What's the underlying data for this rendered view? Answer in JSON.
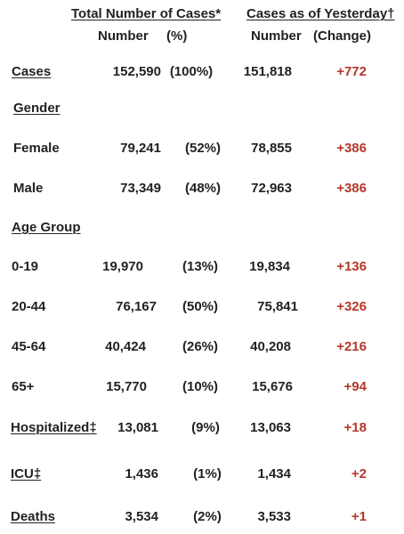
{
  "header": {
    "total_title": "Total Number of Cases*",
    "yesterday_title": "Cases as of Yesterday†",
    "number_label": "Number",
    "pct_label": "(%)",
    "number_label_2": "Number",
    "change_label": "(Change)"
  },
  "sections": {
    "gender": "Gender",
    "age_group": "Age Group"
  },
  "rows": {
    "cases": {
      "label": "Cases",
      "total": "152,590",
      "pct": "(100%)",
      "yesterday": "151,818",
      "change": "+772"
    },
    "female": {
      "label": "Female",
      "total": "79,241",
      "pct": "(52%)",
      "yesterday": "78,855",
      "change": "+386"
    },
    "male": {
      "label": "Male",
      "total": "73,349",
      "pct": "(48%)",
      "yesterday": "72,963",
      "change": "+386"
    },
    "age_0_19": {
      "label": "0-19",
      "total": "19,970",
      "pct": "(13%)",
      "yesterday": "19,834",
      "change": "+136"
    },
    "age_20_44": {
      "label": "20-44",
      "total": "76,167",
      "pct": "(50%)",
      "yesterday": "75,841",
      "change": "+326"
    },
    "age_45_64": {
      "label": "45-64",
      "total": "40,424",
      "pct": "(26%)",
      "yesterday": "40,208",
      "change": "+216"
    },
    "age_65": {
      "label": "65+",
      "total": "15,770",
      "pct": "(10%)",
      "yesterday": "15,676",
      "change": "+94"
    },
    "hospitalized": {
      "label": "Hospitalized‡",
      "total": "13,081",
      "pct": "(9%)",
      "yesterday": "13,063",
      "change": "+18"
    },
    "icu": {
      "label": "ICU‡",
      "total": "1,436",
      "pct": "(1%)",
      "yesterday": "1,434",
      "change": "+2"
    },
    "deaths": {
      "label": "Deaths",
      "total": "3,534",
      "pct": "(2%)",
      "yesterday": "3,533",
      "change": "+1"
    }
  },
  "colors": {
    "text": "#222222",
    "change": "#b5372a"
  }
}
